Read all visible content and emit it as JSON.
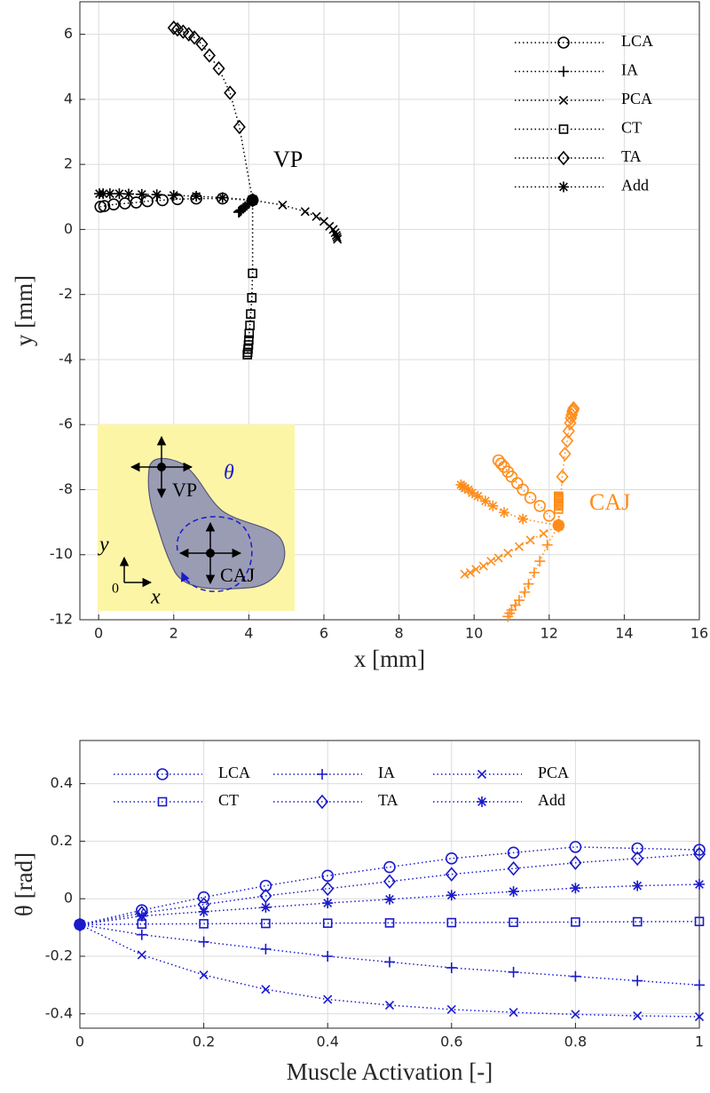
{
  "chart_data": [
    {
      "type": "line",
      "x_label": "x [mm]",
      "y_label": "y [mm]",
      "xlim": [
        -0.5,
        16
      ],
      "ylim": [
        -12,
        7
      ],
      "xticks": [
        0,
        2,
        4,
        6,
        8,
        10,
        12,
        14,
        16
      ],
      "yticks": [
        -12,
        -10,
        -8,
        -6,
        -4,
        -2,
        0,
        2,
        4,
        6
      ],
      "grid": true,
      "legend": "upper right",
      "annotations": [
        {
          "text": "VP",
          "color": "#000000"
        },
        {
          "text": "CAJ",
          "color": "#ff8c1a"
        }
      ],
      "inset": {
        "labels": [
          "VP",
          "θ",
          "CAJ",
          "y",
          "x",
          "0"
        ]
      },
      "series": [
        {
          "name": "LCA",
          "marker": "circle",
          "color": "#000000",
          "x": [
            4.1,
            3.3,
            2.6,
            2.1,
            1.7,
            1.3,
            1.0,
            0.7,
            0.4,
            0.15,
            0.05
          ],
          "values": [
            0.9,
            0.95,
            0.95,
            0.93,
            0.9,
            0.87,
            0.83,
            0.8,
            0.77,
            0.72,
            0.7
          ]
        },
        {
          "name": "IA",
          "marker": "plus",
          "color": "#000000",
          "x": [
            4.1,
            4.0,
            3.95,
            3.9,
            3.85,
            3.8,
            3.78,
            3.76,
            3.75,
            3.74,
            3.73
          ],
          "values": [
            0.9,
            0.8,
            0.75,
            0.7,
            0.65,
            0.6,
            0.58,
            0.56,
            0.55,
            0.54,
            0.53
          ]
        },
        {
          "name": "PCA",
          "marker": "x",
          "color": "#000000",
          "x": [
            4.1,
            4.9,
            5.5,
            5.8,
            6.0,
            6.15,
            6.25,
            6.3,
            6.33,
            6.35,
            6.36
          ],
          "values": [
            0.9,
            0.75,
            0.55,
            0.4,
            0.25,
            0.1,
            0,
            -0.1,
            -0.18,
            -0.24,
            -0.3
          ]
        },
        {
          "name": "CT",
          "marker": "square",
          "color": "#000000",
          "x": [
            4.1,
            4.1,
            4.08,
            4.05,
            4.03,
            4.01,
            4.0,
            3.99,
            3.98,
            3.97,
            3.96
          ],
          "values": [
            0.9,
            -1.35,
            -2.1,
            -2.6,
            -2.95,
            -3.2,
            -3.4,
            -3.55,
            -3.68,
            -3.78,
            -3.85
          ]
        },
        {
          "name": "TA",
          "marker": "diamond",
          "color": "#000000",
          "x": [
            4.1,
            3.75,
            3.5,
            3.2,
            2.95,
            2.75,
            2.55,
            2.4,
            2.25,
            2.1,
            2.0
          ],
          "values": [
            0.9,
            3.15,
            4.2,
            4.95,
            5.35,
            5.7,
            5.9,
            6.0,
            6.08,
            6.15,
            6.2
          ]
        },
        {
          "name": "Add",
          "marker": "asterisk",
          "color": "#000000",
          "x": [
            4.1,
            3.3,
            2.6,
            2.0,
            1.55,
            1.15,
            0.8,
            0.55,
            0.3,
            0.12,
            0.02
          ],
          "values": [
            0.9,
            0.98,
            1.02,
            1.05,
            1.07,
            1.08,
            1.09,
            1.1,
            1.1,
            1.1,
            1.1
          ]
        },
        {
          "name": "LCA",
          "marker": "circle",
          "color": "#ff8c1a",
          "x": [
            12.25,
            12.0,
            11.75,
            11.5,
            11.3,
            11.15,
            11.0,
            10.9,
            10.8,
            10.72,
            10.65
          ],
          "values": [
            -9.1,
            -8.8,
            -8.5,
            -8.25,
            -8.0,
            -7.8,
            -7.6,
            -7.45,
            -7.3,
            -7.2,
            -7.1
          ]
        },
        {
          "name": "IA",
          "marker": "plus",
          "color": "#ff8c1a",
          "x": [
            12.25,
            11.95,
            11.75,
            11.6,
            11.45,
            11.35,
            11.2,
            11.1,
            11.0,
            10.95,
            10.9
          ],
          "values": [
            -9.1,
            -9.7,
            -10.2,
            -10.55,
            -10.9,
            -11.15,
            -11.4,
            -11.55,
            -11.7,
            -11.8,
            -11.9
          ]
        },
        {
          "name": "PCA",
          "marker": "x",
          "color": "#ff8c1a",
          "x": [
            12.25,
            11.85,
            11.5,
            11.2,
            10.9,
            10.65,
            10.45,
            10.25,
            10.05,
            9.9,
            9.75
          ],
          "values": [
            -9.1,
            -9.35,
            -9.55,
            -9.75,
            -9.95,
            -10.1,
            -10.2,
            -10.35,
            -10.45,
            -10.55,
            -10.6
          ]
        },
        {
          "name": "CT",
          "marker": "square",
          "color": "#ff8c1a",
          "x": [
            12.25,
            12.25,
            12.25,
            12.25,
            12.25,
            12.25,
            12.25,
            12.25,
            12.25,
            12.25,
            12.25
          ],
          "values": [
            -9.1,
            -8.6,
            -8.5,
            -8.45,
            -8.4,
            -8.35,
            -8.3,
            -8.28,
            -8.25,
            -8.22,
            -8.2
          ]
        },
        {
          "name": "TA",
          "marker": "diamond",
          "color": "#ff8c1a",
          "x": [
            12.25,
            12.35,
            12.42,
            12.48,
            12.52,
            12.56,
            12.58,
            12.6,
            12.62,
            12.64,
            12.65
          ],
          "values": [
            -9.1,
            -7.6,
            -6.9,
            -6.5,
            -6.2,
            -5.95,
            -5.8,
            -5.7,
            -5.6,
            -5.55,
            -5.5
          ]
        },
        {
          "name": "Add",
          "marker": "asterisk",
          "color": "#ff8c1a",
          "x": [
            12.25,
            11.3,
            10.8,
            10.5,
            10.3,
            10.1,
            9.95,
            9.85,
            9.75,
            9.7,
            9.65
          ],
          "values": [
            -9.1,
            -8.9,
            -8.7,
            -8.5,
            -8.35,
            -8.2,
            -8.1,
            -8.0,
            -7.95,
            -7.9,
            -7.85
          ]
        }
      ]
    },
    {
      "type": "line",
      "x_label": "Muscle Activation [-]",
      "y_label": "θ [rad]",
      "xlim": [
        0,
        1
      ],
      "ylim": [
        -0.45,
        0.55
      ],
      "xticks": [
        0,
        0.2,
        0.4,
        0.6,
        0.8,
        1
      ],
      "yticks": [
        -0.4,
        -0.2,
        0,
        0.2,
        0.4
      ],
      "grid": true,
      "legend": "upper center",
      "x": [
        0,
        0.1,
        0.2,
        0.3,
        0.4,
        0.5,
        0.6,
        0.7,
        0.8,
        0.9,
        1
      ],
      "series": [
        {
          "name": "LCA",
          "marker": "circle",
          "color": "#1a1acc",
          "values": [
            -0.09,
            -0.04,
            0.005,
            0.045,
            0.08,
            0.11,
            0.14,
            0.16,
            0.18,
            0.175,
            0.17
          ]
        },
        {
          "name": "IA",
          "marker": "plus",
          "color": "#1a1acc",
          "values": [
            -0.09,
            -0.125,
            -0.15,
            -0.175,
            -0.2,
            -0.22,
            -0.24,
            -0.255,
            -0.27,
            -0.285,
            -0.3
          ]
        },
        {
          "name": "PCA",
          "marker": "x",
          "color": "#1a1acc",
          "values": [
            -0.09,
            -0.195,
            -0.265,
            -0.315,
            -0.35,
            -0.37,
            -0.385,
            -0.395,
            -0.402,
            -0.407,
            -0.41
          ]
        },
        {
          "name": "CT",
          "marker": "square",
          "color": "#1a1acc",
          "values": [
            -0.09,
            -0.088,
            -0.087,
            -0.086,
            -0.085,
            -0.084,
            -0.083,
            -0.082,
            -0.081,
            -0.08,
            -0.079
          ]
        },
        {
          "name": "TA",
          "marker": "diamond",
          "color": "#1a1acc",
          "values": [
            -0.09,
            -0.05,
            -0.02,
            0.01,
            0.035,
            0.06,
            0.085,
            0.105,
            0.125,
            0.14,
            0.155
          ]
        },
        {
          "name": "Add",
          "marker": "asterisk",
          "color": "#1a1acc",
          "values": [
            -0.09,
            -0.06,
            -0.045,
            -0.03,
            -0.015,
            -0.002,
            0.012,
            0.025,
            0.037,
            0.045,
            0.05
          ]
        }
      ]
    }
  ]
}
